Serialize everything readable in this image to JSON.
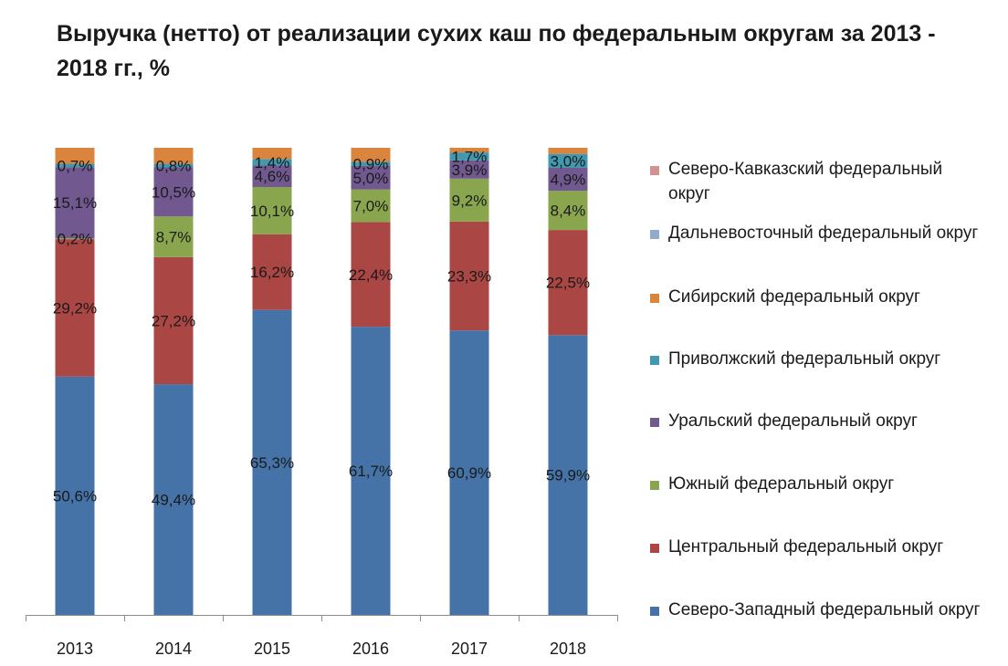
{
  "chart_data": {
    "type": "bar",
    "stacked": true,
    "title": "Выручка (нетто) от реализации сухих каш по федеральным округам за 2013 - 2018 гг., %",
    "categories": [
      "2013",
      "2014",
      "2015",
      "2016",
      "2017",
      "2018"
    ],
    "ylim": [
      0,
      100
    ],
    "grid": false,
    "legend_position": "right",
    "series": [
      {
        "name": "Северо-Западный федеральный округ",
        "color": "#4573A7",
        "values": [
          50.6,
          49.4,
          65.3,
          61.7,
          60.9,
          59.9
        ],
        "labels": [
          "50,6%",
          "49,4%",
          "65,3%",
          "61,7%",
          "60,9%",
          "59,9%"
        ]
      },
      {
        "name": "Центральный федеральный округ",
        "color": "#AA4643",
        "values": [
          29.2,
          27.2,
          16.2,
          22.4,
          23.3,
          22.5
        ],
        "labels": [
          "29,2%",
          "27,2%",
          "16,2%",
          "22,4%",
          "23,3%",
          "22,5%"
        ]
      },
      {
        "name": "Южный федеральный округ",
        "color": "#89A54E",
        "values": [
          0.2,
          8.7,
          10.1,
          7.0,
          9.2,
          8.4
        ],
        "labels": [
          "0,2%",
          "8,7%",
          "10,1%",
          "7,0%",
          "9,2%",
          "8,4%"
        ]
      },
      {
        "name": "Уральский федеральный округ",
        "color": "#71588F",
        "values": [
          15.1,
          10.5,
          4.6,
          5.0,
          3.9,
          4.9
        ],
        "labels": [
          "15,1%",
          "10,5%",
          "4,6%",
          "5,0%",
          "3,9%",
          "4,9%"
        ]
      },
      {
        "name": "Приволжский федеральный округ",
        "color": "#4198AF",
        "values": [
          0.7,
          0.8,
          1.4,
          0.9,
          1.7,
          3.0
        ],
        "labels": [
          "0,7%",
          "0,8%",
          "1,4%",
          "0,9%",
          "1,7%",
          "3,0%"
        ]
      },
      {
        "name": "Сибирский федеральный округ",
        "color": "#DB843D",
        "values": [
          3.4,
          3.4,
          2.4,
          3.0,
          1.0,
          1.3
        ],
        "labels": [
          "",
          "",
          "",
          "",
          "",
          ""
        ]
      },
      {
        "name": "Дальневосточный федеральный округ",
        "color": "#93A9CF",
        "values": [
          0,
          0,
          0,
          0,
          0,
          0
        ],
        "labels": [
          "",
          "",
          "",
          "",
          "",
          ""
        ]
      },
      {
        "name": "Северо-Кавказский федеральный округ",
        "color": "#D19392",
        "values": [
          0,
          0,
          0,
          0,
          0,
          0
        ],
        "labels": [
          "",
          "",
          "",
          "",
          "",
          ""
        ]
      }
    ]
  }
}
